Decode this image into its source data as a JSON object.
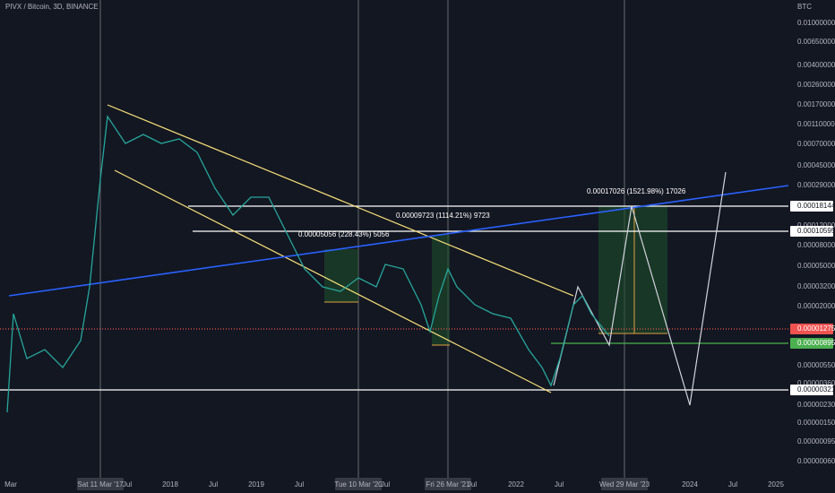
{
  "header": {
    "title": "PIVX / Bitcoin, 3D, BINANCE"
  },
  "price_axis": {
    "unit": "BTC",
    "labels": [
      "0.01000000",
      "0.00650000",
      "0.00400000",
      "0.00260000",
      "0.00170000",
      "0.00110000",
      "0.00070000",
      "0.00045000",
      "0.00029000",
      "0.00018144",
      "0.00012000",
      "0.00010595",
      "0.00008000",
      "0.00005000",
      "0.00003200",
      "0.00002000",
      "0.00001275",
      "0.00000895",
      "0.00000550",
      "0.00000360",
      "0.00000321",
      "0.00000230",
      "0.00000150",
      "0.00000095",
      "0.00000060"
    ]
  },
  "time_axis": {
    "labels": [
      "Mar",
      "Sat 11 Mar '17",
      "Jul",
      "2018",
      "Jul",
      "2019",
      "Jul",
      "Tue 10 Mar '20",
      "Jul",
      "Fri 26 Mar '21",
      "Jul",
      "2022",
      "Jul",
      "Wed 29 Mar '23",
      "2024",
      "Jul",
      "2025"
    ]
  },
  "annotations": [
    "0.00005056 (228.43%) 5056",
    "0.00009723 (1114.21%) 9723",
    "0.00017026 (1521.98%) 17026"
  ]
}
